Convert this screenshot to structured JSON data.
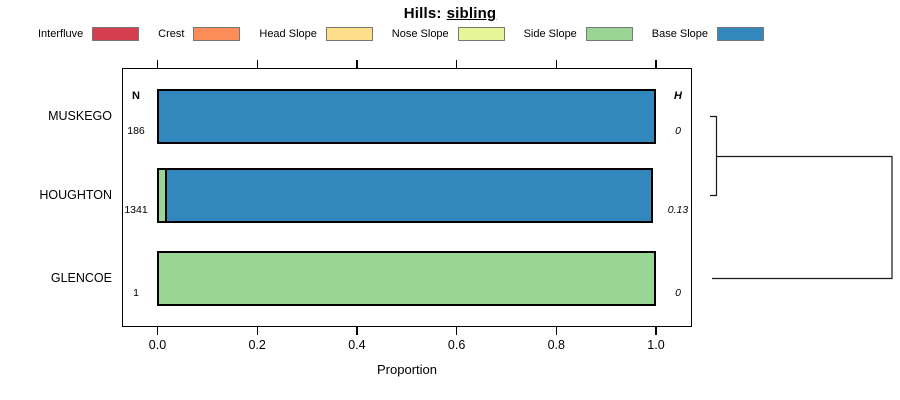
{
  "title": {
    "prefix": "Hills:",
    "emphasis": "sibling"
  },
  "legend": {
    "items": [
      {
        "label": "Interfluve",
        "color": "#D53E4F"
      },
      {
        "label": "Crest",
        "color": "#FC8D59"
      },
      {
        "label": "Head Slope",
        "color": "#FEE08B"
      },
      {
        "label": "Nose Slope",
        "color": "#E6F598"
      },
      {
        "label": "Side Slope",
        "color": "#99D594"
      },
      {
        "label": "Base Slope",
        "color": "#3288BD"
      }
    ]
  },
  "chart_data": {
    "type": "bar",
    "orientation": "horizontal",
    "stacked": true,
    "title": "Hills: sibling",
    "xlabel": "Proportion",
    "xlim": [
      0.0,
      1.0
    ],
    "xticks": [
      "0.0",
      "0.2",
      "0.4",
      "0.6",
      "0.8",
      "1.0"
    ],
    "grid": false,
    "legend_position": "top",
    "n_header": "N",
    "h_header": "H",
    "categories": [
      "MUSKEGO",
      "HOUGHTON",
      "GLENCOE"
    ],
    "rows": [
      {
        "label": "MUSKEGO",
        "n": 186,
        "h": "0",
        "segments": [
          {
            "name": "Base Slope",
            "value": 1.0,
            "color": "#3288BD"
          }
        ]
      },
      {
        "label": "HOUGHTON",
        "n": 1341,
        "h": "0.13",
        "segments": [
          {
            "name": "Side Slope",
            "value": 0.02,
            "color": "#99D594"
          },
          {
            "name": "Base Slope",
            "value": 0.98,
            "color": "#3288BD"
          }
        ]
      },
      {
        "label": "GLENCOE",
        "n": 1,
        "h": "0",
        "segments": [
          {
            "name": "Side Slope",
            "value": 1.0,
            "color": "#99D594"
          }
        ]
      }
    ],
    "dendrogram": {
      "position": "right",
      "leaves": [
        "MUSKEGO",
        "HOUGHTON",
        "GLENCOE"
      ],
      "merges": [
        {
          "members": [
            "MUSKEGO",
            "HOUGHTON"
          ],
          "height": 0.03
        },
        {
          "members": [
            "MUSKEGO+HOUGHTON",
            "GLENCOE"
          ],
          "height": 1.0
        }
      ]
    }
  }
}
